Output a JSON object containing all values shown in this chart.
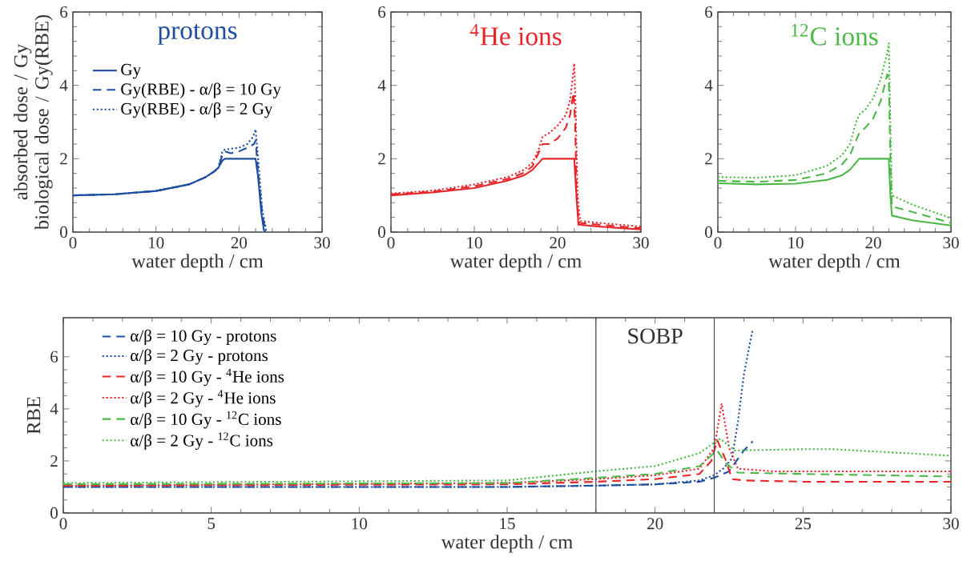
{
  "chart_data": [
    {
      "type": "line",
      "title": "protons",
      "xlabel": "water depth / cm",
      "ylabel": "absorbed dose / Gy biological dose / Gy(RBE)",
      "xlim": [
        0,
        30
      ],
      "ylim": [
        0,
        6
      ],
      "xticks": [
        0,
        10,
        20,
        30
      ],
      "yticks": [
        0,
        2,
        4,
        6
      ],
      "legend": "top left",
      "series": [
        {
          "name": "Gy",
          "color": "#1f4ea1",
          "line_style": "solid",
          "x": [
            0,
            5,
            10,
            14,
            16,
            17,
            17.5,
            18,
            18.3,
            22,
            22.3,
            22.7,
            23,
            23.2
          ],
          "values": [
            1.0,
            1.03,
            1.12,
            1.3,
            1.5,
            1.65,
            1.75,
            1.95,
            2.0,
            2.0,
            1.5,
            0.5,
            0.05,
            0
          ]
        },
        {
          "name": "Gy(RBE) - α/β = 10 Gy",
          "color": "#1f4ea1",
          "line_style": "dashed",
          "x": [
            0,
            5,
            10,
            14,
            16,
            17,
            17.5,
            18,
            18.3,
            19,
            20,
            21,
            21.8,
            22,
            22.3,
            22.8,
            23.2
          ],
          "values": [
            1.0,
            1.03,
            1.12,
            1.3,
            1.5,
            1.65,
            1.75,
            2.1,
            2.2,
            2.15,
            2.2,
            2.3,
            2.4,
            2.5,
            1.6,
            0.5,
            0
          ]
        },
        {
          "name": "Gy(RBE) - α/β = 2 Gy",
          "color": "#1f4ea1",
          "line_style": "dotted",
          "x": [
            0,
            5,
            10,
            14,
            16,
            17,
            17.5,
            18,
            18.3,
            20,
            21,
            21.7,
            22,
            22.3,
            22.8,
            23.3
          ],
          "values": [
            1.0,
            1.03,
            1.12,
            1.3,
            1.5,
            1.65,
            1.75,
            2.2,
            2.25,
            2.3,
            2.4,
            2.6,
            2.8,
            2.0,
            0.6,
            0
          ]
        }
      ]
    },
    {
      "type": "line",
      "title": "$^{4}$He ions",
      "xlabel": "water depth / cm",
      "xlim": [
        0,
        30
      ],
      "ylim": [
        0,
        6
      ],
      "xticks": [
        0,
        10,
        20,
        30
      ],
      "yticks": [
        0,
        2,
        4,
        6
      ],
      "series": [
        {
          "color": "#e8262a",
          "line_style": "solid",
          "x": [
            0,
            5,
            10,
            14,
            16,
            17,
            18,
            18.2,
            22,
            22.2,
            22.5,
            25,
            30
          ],
          "values": [
            1.0,
            1.08,
            1.2,
            1.4,
            1.55,
            1.7,
            1.95,
            2.0,
            2.0,
            1.2,
            0.2,
            0.15,
            0.07
          ]
        },
        {
          "color": "#e8262a",
          "line_style": "dashed",
          "x": [
            0,
            5,
            10,
            14,
            16,
            17,
            17.8,
            18.2,
            19,
            20,
            21,
            21.5,
            21.9,
            22.1,
            22.3,
            22.6,
            25,
            30
          ],
          "values": [
            1.03,
            1.1,
            1.25,
            1.45,
            1.62,
            1.8,
            2.2,
            2.4,
            2.4,
            2.55,
            2.85,
            3.2,
            3.8,
            3.0,
            0.8,
            0.25,
            0.2,
            0.1
          ]
        },
        {
          "color": "#e8262a",
          "line_style": "dotted",
          "x": [
            0,
            5,
            10,
            14,
            16,
            17,
            17.8,
            18.2,
            19,
            20,
            21,
            21.5,
            22,
            22.2,
            22.4,
            22.7,
            25,
            30
          ],
          "values": [
            1.05,
            1.13,
            1.3,
            1.5,
            1.7,
            1.9,
            2.3,
            2.6,
            2.7,
            2.9,
            3.2,
            3.6,
            4.6,
            3.0,
            1.0,
            0.3,
            0.25,
            0.15
          ]
        }
      ]
    },
    {
      "type": "line",
      "title": "$^{12}$C ions",
      "xlabel": "water depth / cm",
      "xlim": [
        0,
        30
      ],
      "ylim": [
        0,
        6
      ],
      "xticks": [
        0,
        10,
        20,
        30
      ],
      "yticks": [
        0,
        2,
        4,
        6
      ],
      "series": [
        {
          "color": "#4db848",
          "line_style": "solid",
          "x": [
            0,
            5,
            10,
            14,
            16,
            17,
            17.8,
            18.2,
            22,
            22.2,
            22.4,
            25,
            30
          ],
          "values": [
            1.33,
            1.3,
            1.32,
            1.42,
            1.55,
            1.7,
            1.9,
            2.0,
            2.0,
            1.0,
            0.45,
            0.32,
            0.18
          ]
        },
        {
          "color": "#4db848",
          "line_style": "dashed",
          "x": [
            0,
            5,
            10,
            14,
            16,
            17,
            17.8,
            18.2,
            19,
            20,
            21,
            21.8,
            22,
            22.2,
            22.4,
            25,
            30
          ],
          "values": [
            1.4,
            1.37,
            1.42,
            1.6,
            1.85,
            2.1,
            2.5,
            2.7,
            2.85,
            3.1,
            3.6,
            4.3,
            4.2,
            2.0,
            0.7,
            0.55,
            0.25
          ]
        },
        {
          "color": "#4db848",
          "line_style": "dotted",
          "x": [
            0,
            5,
            10,
            14,
            16,
            17,
            17.8,
            18.2,
            19,
            20,
            21,
            21.8,
            22,
            22.2,
            22.4,
            25,
            30
          ],
          "values": [
            1.5,
            1.48,
            1.55,
            1.8,
            2.1,
            2.4,
            3.0,
            3.2,
            3.35,
            3.65,
            4.2,
            4.9,
            5.15,
            3.0,
            1.0,
            0.75,
            0.38
          ]
        }
      ]
    },
    {
      "type": "line",
      "xlabel": "water depth / cm",
      "ylabel": "RBE",
      "xlim": [
        0,
        30
      ],
      "ylim": [
        0,
        7.5
      ],
      "xticks": [
        0,
        5,
        10,
        15,
        20,
        25,
        30
      ],
      "yticks": [
        0,
        2,
        4,
        6
      ],
      "legend": "top left",
      "ref_lines": [
        {
          "axis": "x",
          "value": 18,
          "color": "#444444"
        },
        {
          "axis": "x",
          "value": 22,
          "color": "#444444"
        }
      ],
      "annotations": [
        "SOBP"
      ],
      "series": [
        {
          "name": "α/β = 10 Gy - protons",
          "color": "#1f4ea1",
          "line_style": "dashed",
          "x": [
            0,
            15,
            18,
            20,
            21.5,
            22,
            22.5,
            23,
            23.3
          ],
          "values": [
            1.0,
            1.0,
            1.05,
            1.1,
            1.2,
            1.35,
            1.6,
            2.4,
            2.75
          ]
        },
        {
          "name": "α/β = 2 Gy - protons",
          "color": "#1f4ea1",
          "line_style": "dotted",
          "x": [
            0,
            15,
            18,
            20,
            21.5,
            22,
            22.3,
            22.6,
            22.8,
            23.0,
            23.15,
            23.3
          ],
          "values": [
            1.0,
            1.0,
            1.05,
            1.1,
            1.25,
            1.45,
            1.7,
            2.1,
            3.5,
            5.3,
            6.2,
            7.05
          ]
        },
        {
          "name": "α/β = 10 Gy - $^{4}$He ions",
          "color": "#e8262a",
          "line_style": "dashed",
          "x": [
            0,
            15,
            18,
            20,
            21.5,
            21.9,
            22.1,
            22.4,
            22.6,
            23,
            25,
            30
          ],
          "values": [
            1.05,
            1.1,
            1.2,
            1.3,
            1.5,
            2.0,
            2.8,
            2.0,
            1.3,
            1.25,
            1.2,
            1.2
          ]
        },
        {
          "name": "α/β = 2 Gy - $^{4}$He ions",
          "color": "#e8262a",
          "line_style": "dotted",
          "x": [
            0,
            15,
            18,
            20,
            21.5,
            22,
            22.25,
            22.5,
            22.8,
            24,
            30
          ],
          "values": [
            1.05,
            1.15,
            1.3,
            1.45,
            1.7,
            2.5,
            4.2,
            2.5,
            1.7,
            1.6,
            1.6
          ]
        },
        {
          "name": "α/β = 10 Gy - $^{12}$C ions",
          "color": "#4db848",
          "line_style": "dashed",
          "x": [
            0,
            15,
            18,
            20,
            21.5,
            22.1,
            22.4,
            22.8,
            25,
            30
          ],
          "values": [
            1.1,
            1.15,
            1.35,
            1.5,
            1.8,
            2.4,
            1.9,
            1.55,
            1.5,
            1.4
          ]
        },
        {
          "name": "α/β = 2 Gy - $^{12}$C ions",
          "color": "#4db848",
          "line_style": "dotted",
          "x": [
            0,
            15,
            18,
            20,
            21.5,
            22,
            22.2,
            22.7,
            25,
            26,
            30
          ],
          "values": [
            1.15,
            1.25,
            1.6,
            1.8,
            2.3,
            2.7,
            2.85,
            2.4,
            2.45,
            2.45,
            2.2
          ]
        }
      ]
    }
  ]
}
